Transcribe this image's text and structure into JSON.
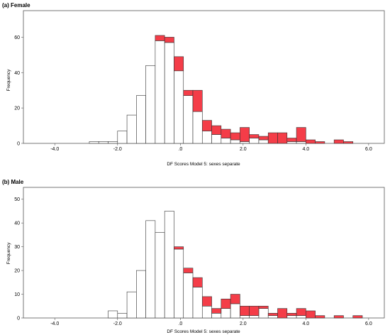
{
  "chart_data": [
    {
      "type": "bar",
      "title": "(a) Female",
      "xlabel": "DF Scores Model 5: sexes separate",
      "ylabel": "Frequency",
      "xlim": [
        -5.0,
        6.5
      ],
      "ylim": [
        0,
        75
      ],
      "xticks": [
        "-4.0",
        "-2.0",
        ".0",
        "2.0",
        "4.0",
        "6.0"
      ],
      "yticks": [
        "0",
        "20",
        "40",
        "60"
      ],
      "bin_width": 0.3,
      "grid": false,
      "series": [
        {
          "color": "#ffffff",
          "bins": [
            {
              "x0": -2.9,
              "value": 1
            },
            {
              "x0": -2.6,
              "value": 1
            },
            {
              "x0": -2.3,
              "value": 1
            },
            {
              "x0": -2.0,
              "value": 7
            },
            {
              "x0": -1.7,
              "value": 16
            },
            {
              "x0": -1.4,
              "value": 27
            },
            {
              "x0": -1.1,
              "value": 44
            },
            {
              "x0": -0.8,
              "value": 58
            },
            {
              "x0": -0.5,
              "value": 57
            },
            {
              "x0": -0.2,
              "value": 41
            },
            {
              "x0": 0.1,
              "value": 27
            },
            {
              "x0": 0.4,
              "value": 18
            },
            {
              "x0": 0.7,
              "value": 7
            },
            {
              "x0": 1.0,
              "value": 5
            },
            {
              "x0": 1.3,
              "value": 3
            },
            {
              "x0": 1.6,
              "value": 2
            },
            {
              "x0": 1.9,
              "value": 1
            },
            {
              "x0": 2.2,
              "value": 3
            },
            {
              "x0": 2.5,
              "value": 2
            },
            {
              "x0": 2.8,
              "value": 0
            },
            {
              "x0": 3.1,
              "value": 0
            },
            {
              "x0": 3.4,
              "value": 1
            },
            {
              "x0": 3.7,
              "value": 1
            }
          ]
        },
        {
          "color": "#f43d48",
          "bins": [
            {
              "x0": -0.8,
              "value": 3
            },
            {
              "x0": -0.5,
              "value": 3
            },
            {
              "x0": -0.2,
              "value": 8
            },
            {
              "x0": 0.1,
              "value": 3
            },
            {
              "x0": 0.4,
              "value": 12
            },
            {
              "x0": 0.7,
              "value": 6
            },
            {
              "x0": 1.0,
              "value": 5
            },
            {
              "x0": 1.3,
              "value": 5
            },
            {
              "x0": 1.6,
              "value": 4
            },
            {
              "x0": 1.9,
              "value": 8
            },
            {
              "x0": 2.2,
              "value": 2
            },
            {
              "x0": 2.5,
              "value": 2
            },
            {
              "x0": 2.8,
              "value": 6
            },
            {
              "x0": 3.1,
              "value": 6
            },
            {
              "x0": 3.4,
              "value": 2
            },
            {
              "x0": 3.7,
              "value": 8
            },
            {
              "x0": 4.0,
              "value": 2
            },
            {
              "x0": 4.3,
              "value": 1
            },
            {
              "x0": 4.9,
              "value": 2
            },
            {
              "x0": 5.2,
              "value": 1
            }
          ]
        }
      ]
    },
    {
      "type": "bar",
      "title": "(b) Male",
      "xlabel": "DF Scores Model 5: sexes separate",
      "ylabel": "Frequency",
      "xlim": [
        -5.0,
        6.5
      ],
      "ylim": [
        0,
        55
      ],
      "xticks": [
        "-4.0",
        "-2.0",
        ".0",
        "2.0",
        "4.0",
        "6.0"
      ],
      "yticks": [
        "0",
        "10",
        "20",
        "30",
        "40",
        "50"
      ],
      "bin_width": 0.3,
      "grid": false,
      "series": [
        {
          "color": "#ffffff",
          "bins": [
            {
              "x0": -2.3,
              "value": 3
            },
            {
              "x0": -2.0,
              "value": 2
            },
            {
              "x0": -1.7,
              "value": 11
            },
            {
              "x0": -1.4,
              "value": 20
            },
            {
              "x0": -1.1,
              "value": 41
            },
            {
              "x0": -0.8,
              "value": 36
            },
            {
              "x0": -0.5,
              "value": 45
            },
            {
              "x0": -0.2,
              "value": 29
            },
            {
              "x0": 0.1,
              "value": 19
            },
            {
              "x0": 0.4,
              "value": 13
            },
            {
              "x0": 0.7,
              "value": 5
            },
            {
              "x0": 1.0,
              "value": 2
            },
            {
              "x0": 1.3,
              "value": 4
            },
            {
              "x0": 1.6,
              "value": 6
            },
            {
              "x0": 1.9,
              "value": 1
            },
            {
              "x0": 2.2,
              "value": 1
            },
            {
              "x0": 2.5,
              "value": 4
            },
            {
              "x0": 2.8,
              "value": 1
            },
            {
              "x0": 3.1,
              "value": 0
            },
            {
              "x0": 3.4,
              "value": 1
            },
            {
              "x0": 3.7,
              "value": 1
            }
          ]
        },
        {
          "color": "#f43d48",
          "bins": [
            {
              "x0": -0.2,
              "value": 1
            },
            {
              "x0": 0.1,
              "value": 2
            },
            {
              "x0": 0.4,
              "value": 4
            },
            {
              "x0": 0.7,
              "value": 4
            },
            {
              "x0": 1.0,
              "value": 2
            },
            {
              "x0": 1.3,
              "value": 4
            },
            {
              "x0": 1.6,
              "value": 4
            },
            {
              "x0": 1.9,
              "value": 4
            },
            {
              "x0": 2.2,
              "value": 4
            },
            {
              "x0": 2.5,
              "value": 1
            },
            {
              "x0": 2.8,
              "value": 1
            },
            {
              "x0": 3.1,
              "value": 4
            },
            {
              "x0": 3.4,
              "value": 1
            },
            {
              "x0": 3.7,
              "value": 3
            },
            {
              "x0": 4.0,
              "value": 3
            },
            {
              "x0": 4.3,
              "value": 1
            },
            {
              "x0": 4.9,
              "value": 1
            },
            {
              "x0": 5.5,
              "value": 1
            }
          ]
        }
      ]
    }
  ]
}
